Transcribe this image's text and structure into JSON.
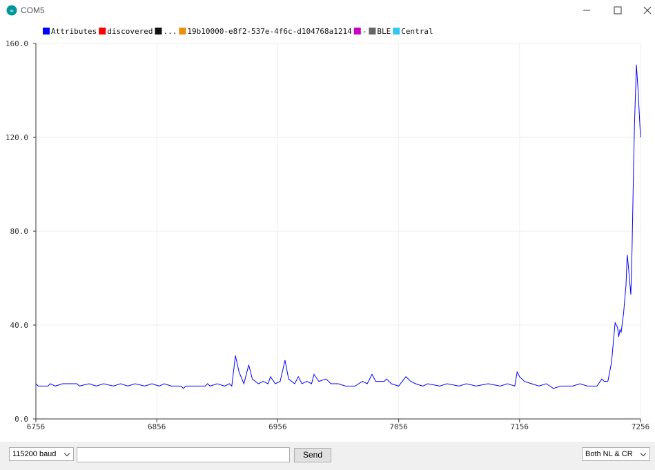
{
  "window": {
    "title": "COM5"
  },
  "chart_data": {
    "type": "line",
    "x": [
      6756,
      6758,
      6766,
      6768,
      6772,
      6778,
      6790,
      6792,
      6800,
      6806,
      6812,
      6820,
      6826,
      6832,
      6838,
      6846,
      6852,
      6858,
      6862,
      6868,
      6876,
      6878,
      6880,
      6896,
      6898,
      6900,
      6906,
      6912,
      6916,
      6918,
      6921,
      6924,
      6928,
      6932,
      6935,
      6940,
      6944,
      6948,
      6950,
      6954,
      6958,
      6962,
      6965,
      6970,
      6973,
      6976,
      6980,
      6984,
      6986,
      6990,
      6996,
      7000,
      7006,
      7012,
      7020,
      7026,
      7030,
      7034,
      7037,
      7044,
      7046,
      7050,
      7056,
      7062,
      7066,
      7070,
      7076,
      7080,
      7090,
      7096,
      7106,
      7112,
      7120,
      7130,
      7140,
      7146,
      7152,
      7154,
      7156,
      7160,
      7166,
      7172,
      7178,
      7184,
      7190,
      7200,
      7206,
      7212,
      7220,
      7224,
      7226,
      7229,
      7232,
      7235,
      7237,
      7238,
      7239,
      7240,
      7242,
      7244,
      7245,
      7246,
      7248,
      7249,
      7250,
      7251,
      7252.6,
      7254,
      7256
    ],
    "series": [
      {
        "name": "Attributes",
        "color": "#0000ff",
        "values": [
          15,
          14,
          14,
          15,
          14,
          15,
          15,
          14,
          15,
          14,
          15,
          14,
          15,
          14,
          15,
          14,
          15,
          14,
          15,
          14,
          14,
          13,
          14,
          14,
          15,
          14,
          15,
          14,
          15,
          14,
          27,
          20,
          15,
          23,
          17,
          15,
          16,
          15,
          18,
          15,
          16,
          25,
          17,
          15,
          18,
          15,
          16,
          15,
          19,
          16,
          17,
          15,
          15,
          14,
          14,
          16,
          15,
          19,
          16,
          16,
          17,
          15,
          14,
          18,
          16,
          15,
          14,
          15,
          14,
          15,
          14,
          15,
          14,
          15,
          14,
          15,
          14,
          20,
          18,
          16,
          15,
          14,
          15,
          13,
          14,
          14,
          15,
          14,
          14,
          17,
          16,
          16,
          24,
          41,
          39,
          35,
          38,
          37,
          45,
          57,
          70,
          65,
          53,
          72,
          100,
          125,
          151,
          140,
          120
        ]
      },
      {
        "name": "discovered",
        "color": "#ff0000"
      },
      {
        "name": "...",
        "color": "#111111"
      },
      {
        "name": "19b10000-e8f2-537e-4f6c-d104768a1214",
        "color": "#e8900c"
      },
      {
        "name": "-",
        "color": "#c800c8"
      },
      {
        "name": "BLE",
        "color": "#666666"
      },
      {
        "name": "Central",
        "color": "#30c8f0"
      }
    ],
    "xlim": [
      6756,
      7256
    ],
    "xticks": [
      6756,
      6856,
      6956,
      7056,
      7156,
      7256
    ],
    "ylim": [
      0,
      160
    ],
    "yticks": [
      {
        "value": 0,
        "label": "0.0"
      },
      {
        "value": 40,
        "label": "40.0"
      },
      {
        "value": 80,
        "label": "80.0"
      },
      {
        "value": 120,
        "label": "120.0"
      },
      {
        "value": 160,
        "label": "160.0"
      }
    ],
    "grid": true
  },
  "controls": {
    "baud": "115200 baud",
    "send": "Send",
    "line_ending": "Both NL & CR"
  }
}
